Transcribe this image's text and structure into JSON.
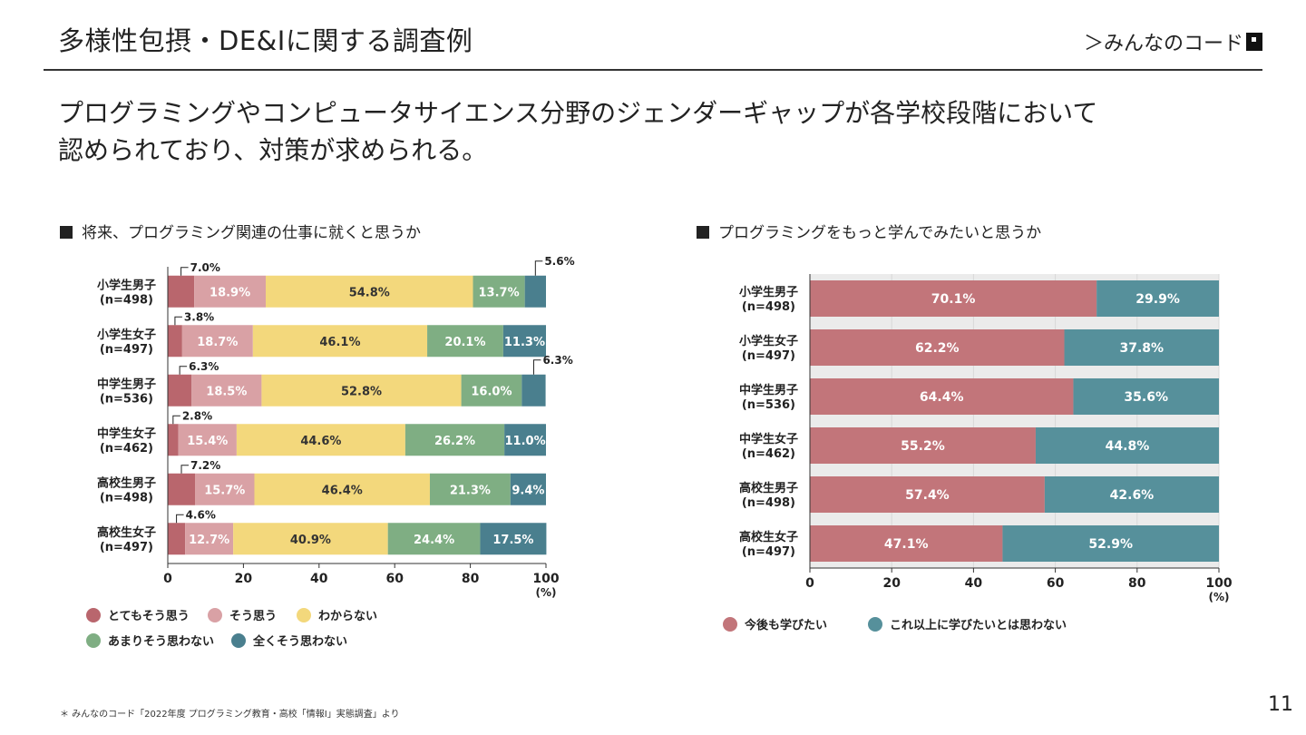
{
  "slide": {
    "title": "多様性包摂・DE&Iに関する調査例",
    "brand": "＞みんなのコード",
    "headline_line1": "プログラミングやコンピュータサイエンス分野のジェンダーギャップが各学校段階において",
    "headline_line2": "認められており、対策が求められる。",
    "footnote": "＊ みんなのコード「2022年度 プログラミング教育・高校「情報Ⅰ」実態調査」より",
    "page_number": "11"
  },
  "colors": {
    "strongly_agree": "#b9666d",
    "agree": "#d9a1a5",
    "unsure": "#f3d87c",
    "disagree": "#7fae83",
    "strongly_disagree": "#4a7f8e",
    "want": "#c2757a",
    "not_want": "#56909b"
  },
  "chart_data": [
    {
      "type": "bar",
      "orientation": "horizontal",
      "stacked": true,
      "title": "将来、プログラミング関連の仕事に就くと思うか",
      "categories": [
        [
          "小学生男子",
          "(n=498)"
        ],
        [
          "小学生女子",
          "(n=497)"
        ],
        [
          "中学生男子",
          "(n=536)"
        ],
        [
          "中学生女子",
          "(n=462)"
        ],
        [
          "高校生男子",
          "(n=498)"
        ],
        [
          "高校生女子",
          "(n=497)"
        ]
      ],
      "series": [
        {
          "name": "とてもそう思う",
          "color_key": "strongly_agree",
          "values": [
            7.0,
            3.8,
            6.3,
            2.8,
            7.2,
            4.6
          ]
        },
        {
          "name": "そう思う",
          "color_key": "agree",
          "values": [
            18.9,
            18.7,
            18.5,
            15.4,
            15.7,
            12.7
          ]
        },
        {
          "name": "わからない",
          "color_key": "unsure",
          "values": [
            54.8,
            46.1,
            52.8,
            44.6,
            46.4,
            40.9
          ]
        },
        {
          "name": "あまりそう思わない",
          "color_key": "disagree",
          "values": [
            13.7,
            20.1,
            16.0,
            26.2,
            21.3,
            24.4
          ]
        },
        {
          "name": "全くそう思わない",
          "color_key": "strongly_disagree",
          "values": [
            5.6,
            11.3,
            6.3,
            11.0,
            9.4,
            17.5
          ]
        }
      ],
      "xlim": [
        0,
        100
      ],
      "xticks": [
        "0",
        "20",
        "40",
        "60",
        "80",
        "100"
      ],
      "x_unit": "(%)",
      "legend_position": "bottom"
    },
    {
      "type": "bar",
      "orientation": "horizontal",
      "stacked": true,
      "title": "プログラミングをもっと学んでみたいと思うか",
      "categories": [
        [
          "小学生男子",
          "(n=498)"
        ],
        [
          "小学生女子",
          "(n=497)"
        ],
        [
          "中学生男子",
          "(n=536)"
        ],
        [
          "中学生女子",
          "(n=462)"
        ],
        [
          "高校生男子",
          "(n=498)"
        ],
        [
          "高校生女子",
          "(n=497)"
        ]
      ],
      "series": [
        {
          "name": "今後も学びたい",
          "color_key": "want",
          "values": [
            70.1,
            62.2,
            64.4,
            55.2,
            57.4,
            47.1
          ]
        },
        {
          "name": "これ以上に学びたいとは思わない",
          "color_key": "not_want",
          "values": [
            29.9,
            37.8,
            35.6,
            44.8,
            42.6,
            52.9
          ]
        }
      ],
      "xlim": [
        0,
        100
      ],
      "xticks": [
        "0",
        "20",
        "40",
        "60",
        "80",
        "100"
      ],
      "x_unit": "(%)",
      "grid": true,
      "legend_position": "bottom"
    }
  ]
}
